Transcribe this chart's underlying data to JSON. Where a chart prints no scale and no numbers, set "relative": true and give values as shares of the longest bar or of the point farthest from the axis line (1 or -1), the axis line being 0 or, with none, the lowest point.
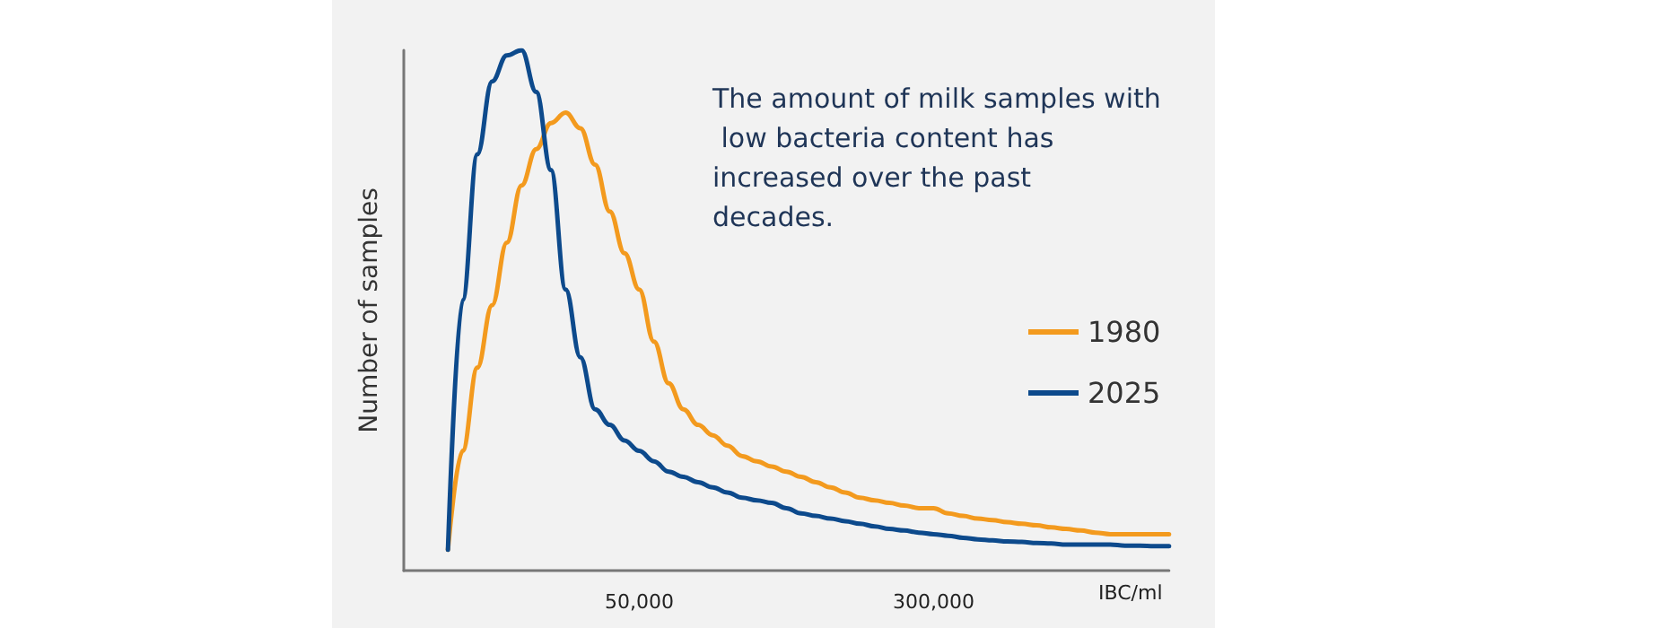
{
  "chart_data": {
    "type": "line",
    "relative": true,
    "ylabel": "Number of samples",
    "xlabel": "IBC/ml",
    "annotations": [
      "The amount of milk samples with low bacteria content has increased over the past decades."
    ],
    "categories": [
      null,
      null,
      null,
      null,
      null,
      null,
      null,
      null,
      null,
      null,
      null,
      null,
      null,
      null,
      null,
      null,
      "50,000",
      null,
      null,
      null,
      null,
      null,
      null,
      null,
      null,
      null,
      null,
      null,
      null,
      null,
      null,
      null,
      null,
      null,
      null,
      null,
      "300,000",
      null,
      null,
      null,
      null,
      null,
      null,
      null,
      null,
      null,
      null,
      null,
      null,
      null,
      null,
      null,
      null
    ],
    "series": [
      {
        "name": "1980",
        "color": "#f39a1e",
        "values": [
          null,
          null,
          null,
          0.04,
          0.23,
          0.39,
          0.51,
          0.63,
          0.74,
          0.81,
          0.86,
          0.88,
          0.85,
          0.78,
          0.69,
          0.61,
          0.54,
          0.44,
          0.36,
          0.31,
          0.28,
          0.26,
          0.24,
          0.22,
          0.21,
          0.2,
          0.19,
          0.18,
          0.17,
          0.16,
          0.15,
          0.14,
          0.135,
          0.13,
          0.125,
          0.12,
          0.12,
          0.11,
          0.105,
          0.1,
          0.097,
          0.093,
          0.09,
          0.087,
          0.083,
          0.08,
          0.077,
          0.073,
          0.07,
          0.07,
          0.07,
          0.07,
          0.07
        ]
      },
      {
        "name": "2025",
        "color": "#0d4a8c",
        "values": [
          null,
          null,
          null,
          0.04,
          0.52,
          0.8,
          0.94,
          0.99,
          1.0,
          0.92,
          0.77,
          0.54,
          0.41,
          0.31,
          0.28,
          0.25,
          0.23,
          0.21,
          0.19,
          0.18,
          0.17,
          0.16,
          0.15,
          0.14,
          0.135,
          0.13,
          0.12,
          0.11,
          0.105,
          0.1,
          0.095,
          0.09,
          0.085,
          0.08,
          0.077,
          0.073,
          0.07,
          0.067,
          0.063,
          0.06,
          0.058,
          0.056,
          0.055,
          0.053,
          0.052,
          0.05,
          0.05,
          0.05,
          0.05,
          0.048,
          0.048,
          0.047,
          0.047
        ]
      }
    ],
    "legend": "right",
    "grid": false,
    "marker": "none",
    "line_style": "solid"
  }
}
